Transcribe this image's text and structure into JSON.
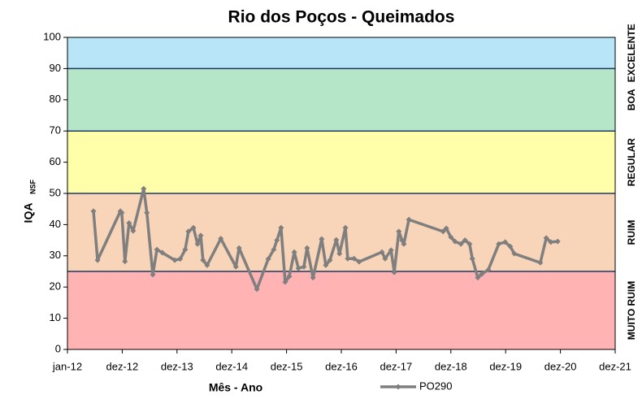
{
  "chart_data": {
    "type": "line",
    "title": "Rio dos Poços - Queimados",
    "xlabel": "Mês - Ano",
    "ylabel": "IQA",
    "ylabel_subscript": "NSF",
    "xlim": [
      0,
      120
    ],
    "xticks": [
      {
        "value": 0,
        "label": "jan-12"
      },
      {
        "value": 12,
        "label": "dez-12"
      },
      {
        "value": 24,
        "label": "dez-13"
      },
      {
        "value": 36,
        "label": "dez-14"
      },
      {
        "value": 48,
        "label": "dez-15"
      },
      {
        "value": 60,
        "label": "dez-16"
      },
      {
        "value": 72,
        "label": "dez-17"
      },
      {
        "value": 84,
        "label": "dez-18"
      },
      {
        "value": 96,
        "label": "dez-19"
      },
      {
        "value": 108,
        "label": "dez-20"
      },
      {
        "value": 120,
        "label": "dez-21"
      }
    ],
    "ylim": [
      0,
      100
    ],
    "yticks": [
      0,
      10,
      20,
      30,
      40,
      50,
      60,
      70,
      80,
      90,
      100
    ],
    "bands": [
      {
        "from": 0,
        "to": 25,
        "label": "MUITO RUIM",
        "color": "#ffb3b3"
      },
      {
        "from": 25,
        "to": 50,
        "label": "RUIM",
        "color": "#f8d4b8"
      },
      {
        "from": 50,
        "to": 70,
        "label": "REGULAR",
        "color": "#ffffaa"
      },
      {
        "from": 70,
        "to": 90,
        "label": "BOA",
        "color": "#b5e6c8"
      },
      {
        "from": 90,
        "to": 100,
        "label": "EXCELENTE",
        "color": "#b8e6f8"
      }
    ],
    "legend": "bottom",
    "series": [
      {
        "name": "PO290",
        "color": "#7f7f7f",
        "x": [
          5.7,
          6.6,
          11.6,
          11.9,
          12.6,
          13.5,
          14.4,
          16.7,
          17.4,
          18.7,
          19.6,
          20.8,
          23.5,
          24.7,
          25.8,
          26.5,
          27.6,
          28.5,
          29.2,
          29.7,
          30.6,
          33.6,
          36.9,
          37.6,
          41.5,
          44.0,
          45.2,
          45.9,
          46.8,
          47.7,
          48.6,
          49.7,
          50.6,
          51.8,
          52.5,
          53.8,
          55.7,
          56.6,
          57.5,
          58.9,
          59.6,
          60.9,
          61.4,
          62.8,
          63.9,
          68.9,
          69.6,
          70.9,
          71.6,
          72.6,
          73.3,
          73.7,
          74.8,
          82.3,
          83.0,
          84.0,
          84.9,
          86.2,
          87.1,
          88.1,
          88.7,
          89.9,
          90.8,
          92.2,
          94.5,
          95.9,
          97.0,
          97.9,
          103.6,
          104.9,
          105.9,
          107.4
        ],
        "values": [
          44.3,
          28.6,
          44.3,
          43.8,
          28.2,
          40.5,
          38,
          51.5,
          43.8,
          24,
          32,
          31,
          28.6,
          29,
          32,
          37.8,
          39,
          33.8,
          36.5,
          28.6,
          27,
          35.5,
          26.5,
          32.5,
          19.3,
          29,
          32,
          35,
          39,
          21.6,
          23.4,
          31.2,
          26,
          26.5,
          32.5,
          23,
          35.4,
          27,
          28.6,
          35.1,
          30.7,
          39,
          29.1,
          29.1,
          28.1,
          31.2,
          29.1,
          31.8,
          24.7,
          37.8,
          35,
          33.8,
          41.6,
          37.8,
          38.8,
          36,
          34.6,
          33.8,
          35,
          33.8,
          29.1,
          23,
          24.2,
          25.5,
          33.8,
          34.4,
          33,
          30.7,
          27.8,
          35.7,
          34.4,
          34.6
        ]
      }
    ]
  }
}
